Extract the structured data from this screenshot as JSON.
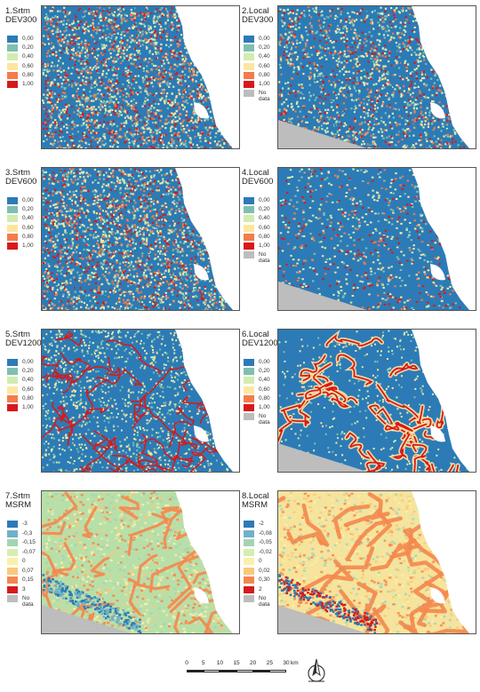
{
  "panels": [
    {
      "title_line1": "1.Srtm",
      "title_line2": "DEV300",
      "scheme": "dev",
      "mode": "noise",
      "nodata": false,
      "legend": [
        {
          "label": "0,00",
          "color": "#2c7bb6"
        },
        {
          "label": "0,20",
          "color": "#7fbfb0"
        },
        {
          "label": "0,40",
          "color": "#d2ecb0"
        },
        {
          "label": "0,60",
          "color": "#fee6a0"
        },
        {
          "label": "0,80",
          "color": "#f47b4a"
        },
        {
          "label": "1,00",
          "color": "#d7191c"
        }
      ]
    },
    {
      "title_line1": "2.Local",
      "title_line2": "DEV300",
      "scheme": "dev",
      "mode": "noise-blue",
      "nodata": true,
      "legend": [
        {
          "label": "0,00",
          "color": "#2c7bb6"
        },
        {
          "label": "0,20",
          "color": "#7fbfb0"
        },
        {
          "label": "0,40",
          "color": "#d2ecb0"
        },
        {
          "label": "0,60",
          "color": "#fee6a0"
        },
        {
          "label": "0,80",
          "color": "#f47b4a"
        },
        {
          "label": "1,00",
          "color": "#d7191c"
        }
      ],
      "nodata_label_1": "No",
      "nodata_label_2": "data"
    },
    {
      "title_line1": "3.Srtm",
      "title_line2": "DEV600",
      "scheme": "dev",
      "mode": "noise",
      "nodata": false,
      "legend": [
        {
          "label": "0,00",
          "color": "#2c7bb6"
        },
        {
          "label": "0,20",
          "color": "#7fbfb0"
        },
        {
          "label": "0,40",
          "color": "#d2ecb0"
        },
        {
          "label": "0,60",
          "color": "#fee6a0"
        },
        {
          "label": "0,80",
          "color": "#f47b4a"
        },
        {
          "label": "1,00",
          "color": "#d7191c"
        }
      ]
    },
    {
      "title_line1": "4.Local",
      "title_line2": "DEV600",
      "scheme": "dev",
      "mode": "patchy",
      "nodata": true,
      "legend": [
        {
          "label": "0,00",
          "color": "#2c7bb6"
        },
        {
          "label": "0,20",
          "color": "#7fbfb0"
        },
        {
          "label": "0,40",
          "color": "#d2ecb0"
        },
        {
          "label": "0,60",
          "color": "#fee6a0"
        },
        {
          "label": "0,80",
          "color": "#f47b4a"
        },
        {
          "label": "1,00",
          "color": "#d7191c"
        }
      ],
      "nodata_label_1": "No",
      "nodata_label_2": "data"
    },
    {
      "title_line1": "5.Srtm",
      "title_line2": "DEV1200",
      "scheme": "dev",
      "mode": "channels",
      "nodata": false,
      "legend": [
        {
          "label": "0,00",
          "color": "#2c7bb6"
        },
        {
          "label": "0,20",
          "color": "#7fbfb0"
        },
        {
          "label": "0,40",
          "color": "#d2ecb0"
        },
        {
          "label": "0,60",
          "color": "#fee6a0"
        },
        {
          "label": "0,80",
          "color": "#f47b4a"
        },
        {
          "label": "1,00",
          "color": "#d7191c"
        }
      ]
    },
    {
      "title_line1": "6.Local",
      "title_line2": "DEV1200",
      "scheme": "dev",
      "mode": "channels-wide",
      "nodata": true,
      "legend": [
        {
          "label": "0,00",
          "color": "#2c7bb6"
        },
        {
          "label": "0,20",
          "color": "#7fbfb0"
        },
        {
          "label": "0,40",
          "color": "#d2ecb0"
        },
        {
          "label": "0,60",
          "color": "#fee6a0"
        },
        {
          "label": "0,80",
          "color": "#f47b4a"
        },
        {
          "label": "1,00",
          "color": "#d7191c"
        }
      ],
      "nodata_label_1": "No",
      "nodata_label_2": "data"
    },
    {
      "title_line1": "7.Srtm",
      "title_line2": "MSRM",
      "scheme": "msrm",
      "mode": "msrm",
      "nodata": true,
      "legend": [
        {
          "label": "-3",
          "color": "#2c7bb6"
        },
        {
          "label": "-0,3",
          "color": "#6fb1c8"
        },
        {
          "label": "-0,15",
          "color": "#a5d3b5"
        },
        {
          "label": "-0,07",
          "color": "#d6eeb1"
        },
        {
          "label": "0",
          "color": "#fbf0a8"
        },
        {
          "label": "0,07",
          "color": "#fdc779"
        },
        {
          "label": "0,15",
          "color": "#f4874e"
        },
        {
          "label": "3",
          "color": "#d7191c"
        }
      ],
      "nodata_label_1": "No",
      "nodata_label_2": "data"
    },
    {
      "title_line1": "8.Local",
      "title_line2": "MSRM",
      "scheme": "msrm",
      "mode": "msrm-local",
      "nodata": true,
      "legend": [
        {
          "label": "-2",
          "color": "#2c7bb6"
        },
        {
          "label": "-0,08",
          "color": "#6fb1c8"
        },
        {
          "label": "-0,05",
          "color": "#a5d3b5"
        },
        {
          "label": "-0,02",
          "color": "#d6eeb1"
        },
        {
          "label": "0",
          "color": "#fbf0a8"
        },
        {
          "label": "0,02",
          "color": "#fdc779"
        },
        {
          "label": "0,30",
          "color": "#f4874e"
        },
        {
          "label": "2",
          "color": "#d7191c"
        }
      ],
      "nodata_label_1": "No",
      "nodata_label_2": "data"
    }
  ],
  "nodata_color": "#bdbdbd",
  "scalebar": {
    "ticks": [
      "0",
      "5",
      "10",
      "15",
      "20",
      "25",
      "30"
    ],
    "unit": "km"
  },
  "north_arrow": {
    "icon": "north-arrow-icon"
  }
}
